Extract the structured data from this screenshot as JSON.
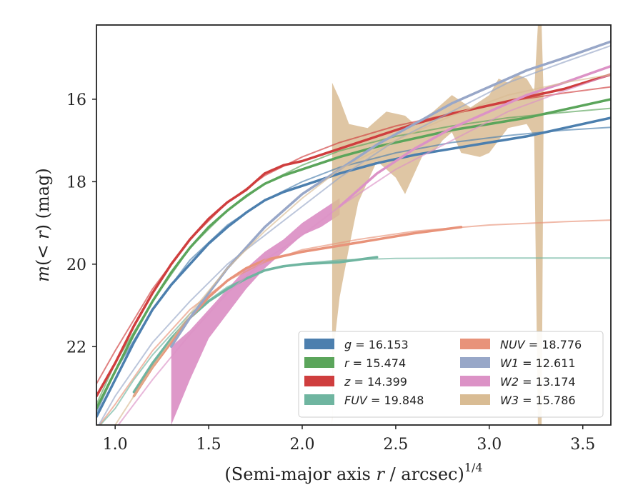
{
  "chart_data": {
    "type": "line",
    "xlabel": "(Semi-major axis r / arcsec)",
    "xlabel_var": "r",
    "xlabel_sup": "1/4",
    "ylabel": "m(< r) (mag)",
    "xlim": [
      0.9,
      3.65
    ],
    "ylim": [
      23.9,
      14.2
    ],
    "y_inverted": true,
    "xticks": [
      1.0,
      1.5,
      2.0,
      2.5,
      3.0,
      3.5
    ],
    "xtick_labels": [
      "1.0",
      "1.5",
      "2.0",
      "2.5",
      "3.0",
      "3.5"
    ],
    "yticks": [
      16,
      18,
      20,
      22
    ],
    "ytick_labels": [
      "16",
      "18",
      "20",
      "22"
    ],
    "grid": false,
    "legend_position": "lower-right",
    "series": [
      {
        "name": "g = 16.153",
        "color": "#4c7fae",
        "data": [
          [
            0.9,
            23.7
          ],
          [
            1.0,
            22.8
          ],
          [
            1.1,
            21.9
          ],
          [
            1.2,
            21.1
          ],
          [
            1.3,
            20.5
          ],
          [
            1.4,
            20.0
          ],
          [
            1.5,
            19.5
          ],
          [
            1.6,
            19.1
          ],
          [
            1.7,
            18.75
          ],
          [
            1.8,
            18.45
          ],
          [
            1.9,
            18.25
          ],
          [
            2.0,
            18.1
          ],
          [
            2.2,
            17.8
          ],
          [
            2.4,
            17.55
          ],
          [
            2.6,
            17.35
          ],
          [
            2.8,
            17.2
          ],
          [
            3.0,
            17.05
          ],
          [
            3.2,
            16.9
          ],
          [
            3.4,
            16.7
          ],
          [
            3.65,
            16.45
          ]
        ],
        "model": [
          [
            0.9,
            23.6
          ],
          [
            1.0,
            22.6
          ],
          [
            1.2,
            21.1
          ],
          [
            1.4,
            19.9
          ],
          [
            1.6,
            19.05
          ],
          [
            1.8,
            18.45
          ],
          [
            2.0,
            18.0
          ],
          [
            2.2,
            17.65
          ],
          [
            2.5,
            17.3
          ],
          [
            2.8,
            17.05
          ],
          [
            3.1,
            16.88
          ],
          [
            3.4,
            16.75
          ],
          [
            3.65,
            16.68
          ]
        ]
      },
      {
        "name": "r = 15.474",
        "color": "#5ba55b",
        "data": [
          [
            0.9,
            23.5
          ],
          [
            1.0,
            22.6
          ],
          [
            1.1,
            21.7
          ],
          [
            1.2,
            20.9
          ],
          [
            1.3,
            20.2
          ],
          [
            1.4,
            19.6
          ],
          [
            1.5,
            19.1
          ],
          [
            1.6,
            18.7
          ],
          [
            1.7,
            18.35
          ],
          [
            1.8,
            18.05
          ],
          [
            1.9,
            17.85
          ],
          [
            2.0,
            17.7
          ],
          [
            2.2,
            17.4
          ],
          [
            2.4,
            17.15
          ],
          [
            2.6,
            16.95
          ],
          [
            2.8,
            16.75
          ],
          [
            3.0,
            16.6
          ],
          [
            3.2,
            16.45
          ],
          [
            3.4,
            16.25
          ],
          [
            3.65,
            16.0
          ]
        ],
        "model": [
          [
            0.9,
            23.4
          ],
          [
            1.0,
            22.4
          ],
          [
            1.2,
            20.9
          ],
          [
            1.4,
            19.6
          ],
          [
            1.6,
            18.7
          ],
          [
            1.8,
            18.05
          ],
          [
            2.0,
            17.6
          ],
          [
            2.2,
            17.25
          ],
          [
            2.5,
            16.9
          ],
          [
            2.8,
            16.65
          ],
          [
            3.1,
            16.45
          ],
          [
            3.4,
            16.32
          ],
          [
            3.65,
            16.22
          ]
        ]
      },
      {
        "name": "z = 14.399",
        "color": "#cf3e3e",
        "data": [
          [
            0.9,
            23.2
          ],
          [
            1.0,
            22.4
          ],
          [
            1.1,
            21.5
          ],
          [
            1.2,
            20.7
          ],
          [
            1.3,
            20.0
          ],
          [
            1.4,
            19.4
          ],
          [
            1.5,
            18.9
          ],
          [
            1.6,
            18.5
          ],
          [
            1.7,
            18.2
          ],
          [
            1.8,
            17.8
          ],
          [
            1.9,
            17.6
          ],
          [
            2.0,
            17.5
          ],
          [
            2.2,
            17.2
          ],
          [
            2.4,
            16.9
          ],
          [
            2.6,
            16.6
          ],
          [
            2.8,
            16.35
          ],
          [
            3.0,
            16.15
          ],
          [
            3.2,
            15.95
          ],
          [
            3.4,
            15.75
          ],
          [
            3.65,
            15.4
          ]
        ],
        "model": [
          [
            0.9,
            22.9
          ],
          [
            1.0,
            22.1
          ],
          [
            1.2,
            20.6
          ],
          [
            1.4,
            19.4
          ],
          [
            1.6,
            18.5
          ],
          [
            1.8,
            17.85
          ],
          [
            2.0,
            17.4
          ],
          [
            2.2,
            17.05
          ],
          [
            2.5,
            16.65
          ],
          [
            2.8,
            16.35
          ],
          [
            3.1,
            16.05
          ],
          [
            3.4,
            15.85
          ],
          [
            3.65,
            15.7
          ]
        ]
      },
      {
        "name": "FUV = 19.848",
        "color": "#6fb5a0",
        "data": [
          [
            1.1,
            23.1
          ],
          [
            1.2,
            22.4
          ],
          [
            1.3,
            21.8
          ],
          [
            1.4,
            21.3
          ],
          [
            1.5,
            20.9
          ],
          [
            1.6,
            20.6
          ],
          [
            1.7,
            20.35
          ],
          [
            1.8,
            20.15
          ],
          [
            1.9,
            20.05
          ],
          [
            2.0,
            20.0
          ],
          [
            2.2,
            19.95
          ],
          [
            2.4,
            19.83
          ]
        ],
        "model": [
          [
            0.9,
            24.0
          ],
          [
            1.0,
            23.5
          ],
          [
            1.1,
            22.8
          ],
          [
            1.2,
            22.2
          ],
          [
            1.4,
            21.2
          ],
          [
            1.6,
            20.55
          ],
          [
            1.8,
            20.15
          ],
          [
            2.0,
            19.98
          ],
          [
            2.2,
            19.9
          ],
          [
            2.5,
            19.86
          ],
          [
            3.0,
            19.85
          ],
          [
            3.65,
            19.85
          ]
        ]
      },
      {
        "name": "NUV = 18.776",
        "color": "#e8937a",
        "data": [
          [
            1.1,
            23.2
          ],
          [
            1.2,
            22.5
          ],
          [
            1.3,
            21.9
          ],
          [
            1.4,
            21.3
          ],
          [
            1.5,
            20.8
          ],
          [
            1.6,
            20.4
          ],
          [
            1.7,
            20.1
          ],
          [
            1.8,
            19.9
          ],
          [
            2.0,
            19.7
          ],
          [
            2.2,
            19.55
          ],
          [
            2.4,
            19.4
          ],
          [
            2.6,
            19.25
          ],
          [
            2.85,
            19.1
          ]
        ],
        "model": [
          [
            0.9,
            24.0
          ],
          [
            1.0,
            23.4
          ],
          [
            1.2,
            22.1
          ],
          [
            1.4,
            21.1
          ],
          [
            1.6,
            20.4
          ],
          [
            1.8,
            19.95
          ],
          [
            2.0,
            19.65
          ],
          [
            2.3,
            19.4
          ],
          [
            2.6,
            19.2
          ],
          [
            3.0,
            19.05
          ],
          [
            3.4,
            18.97
          ],
          [
            3.65,
            18.93
          ]
        ]
      },
      {
        "name": "W1 = 12.611",
        "color": "#98a7c8",
        "data": [
          [
            1.3,
            22.0
          ],
          [
            1.4,
            21.3
          ],
          [
            1.5,
            20.7
          ],
          [
            1.6,
            20.1
          ],
          [
            1.7,
            19.6
          ],
          [
            1.8,
            19.1
          ],
          [
            1.9,
            18.7
          ],
          [
            2.0,
            18.3
          ],
          [
            2.1,
            18.0
          ],
          [
            2.2,
            17.7
          ],
          [
            2.4,
            17.1
          ],
          [
            2.6,
            16.6
          ],
          [
            2.8,
            16.1
          ],
          [
            3.0,
            15.7
          ],
          [
            3.2,
            15.3
          ],
          [
            3.4,
            15.0
          ],
          [
            3.65,
            14.6
          ]
        ],
        "model": [
          [
            0.9,
            24.0
          ],
          [
            1.0,
            23.2
          ],
          [
            1.2,
            21.9
          ],
          [
            1.4,
            20.9
          ],
          [
            1.6,
            20.0
          ],
          [
            1.8,
            19.3
          ],
          [
            2.0,
            18.6
          ],
          [
            2.2,
            17.9
          ],
          [
            2.5,
            17.0
          ],
          [
            2.8,
            16.3
          ],
          [
            3.1,
            15.6
          ],
          [
            3.4,
            15.1
          ],
          [
            3.65,
            14.7
          ]
        ]
      },
      {
        "name": "W2 = 13.174",
        "color": "#dc92c6",
        "data_lower": [
          [
            1.3,
            23.9
          ],
          [
            1.4,
            22.8
          ],
          [
            1.5,
            21.8
          ],
          [
            1.6,
            21.2
          ],
          [
            1.7,
            20.6
          ],
          [
            1.8,
            20.1
          ],
          [
            1.9,
            19.7
          ],
          [
            2.0,
            19.3
          ],
          [
            2.1,
            19.1
          ],
          [
            2.2,
            18.8
          ]
        ],
        "data_upper": [
          [
            1.3,
            22.0
          ],
          [
            1.4,
            21.6
          ],
          [
            1.5,
            21.1
          ],
          [
            1.6,
            20.6
          ],
          [
            1.7,
            20.1
          ],
          [
            1.8,
            19.7
          ],
          [
            1.9,
            19.4
          ],
          [
            2.0,
            19.0
          ],
          [
            2.1,
            18.7
          ],
          [
            2.2,
            18.4
          ]
        ],
        "data": [
          [
            2.2,
            18.6
          ],
          [
            2.4,
            17.8
          ],
          [
            2.6,
            17.2
          ],
          [
            2.8,
            16.7
          ],
          [
            3.0,
            16.3
          ],
          [
            3.2,
            15.9
          ],
          [
            3.4,
            15.6
          ],
          [
            3.65,
            15.2
          ]
        ],
        "model": [
          [
            1.0,
            24.0
          ],
          [
            1.2,
            22.8
          ],
          [
            1.4,
            21.7
          ],
          [
            1.6,
            20.7
          ],
          [
            1.8,
            19.9
          ],
          [
            2.0,
            19.3
          ],
          [
            2.2,
            18.6
          ],
          [
            2.5,
            17.7
          ],
          [
            2.8,
            17.0
          ],
          [
            3.1,
            16.3
          ],
          [
            3.4,
            15.8
          ],
          [
            3.65,
            15.4
          ]
        ]
      },
      {
        "name": "W3 = 15.786",
        "color": "#d9bc94",
        "band_upper": [
          [
            2.16,
            15.6
          ],
          [
            2.2,
            16.0
          ],
          [
            2.25,
            16.6
          ],
          [
            2.35,
            16.7
          ],
          [
            2.45,
            16.3
          ],
          [
            2.55,
            16.4
          ],
          [
            2.6,
            16.6
          ],
          [
            2.7,
            16.3
          ],
          [
            2.8,
            15.9
          ],
          [
            2.9,
            16.2
          ],
          [
            3.0,
            15.9
          ],
          [
            3.05,
            15.5
          ],
          [
            3.1,
            15.6
          ],
          [
            3.15,
            15.4
          ],
          [
            3.2,
            15.5
          ],
          [
            3.24,
            15.8
          ],
          [
            3.26,
            14.2
          ],
          [
            3.28,
            14.2
          ],
          [
            3.29,
            15.8
          ]
        ],
        "band_lower": [
          [
            2.16,
            23.9
          ],
          [
            2.17,
            22.0
          ],
          [
            2.2,
            20.8
          ],
          [
            2.25,
            19.6
          ],
          [
            2.3,
            18.5
          ],
          [
            2.4,
            17.5
          ],
          [
            2.5,
            17.9
          ],
          [
            2.55,
            18.3
          ],
          [
            2.6,
            17.8
          ],
          [
            2.65,
            17.3
          ],
          [
            2.7,
            17.3
          ],
          [
            2.75,
            17.0
          ],
          [
            2.8,
            16.8
          ],
          [
            2.85,
            17.3
          ],
          [
            2.95,
            17.4
          ],
          [
            3.0,
            17.3
          ],
          [
            3.1,
            16.7
          ],
          [
            3.2,
            16.6
          ],
          [
            3.24,
            16.9
          ],
          [
            3.26,
            23.9
          ],
          [
            3.28,
            23.9
          ],
          [
            3.29,
            16.8
          ]
        ],
        "model": [
          [
            1.0,
            23.9
          ],
          [
            1.2,
            22.5
          ],
          [
            1.4,
            21.2
          ],
          [
            1.6,
            20.1
          ],
          [
            1.8,
            19.2
          ],
          [
            2.0,
            18.4
          ],
          [
            2.2,
            17.7
          ],
          [
            2.5,
            17.0
          ],
          [
            2.8,
            16.4
          ],
          [
            3.1,
            15.9
          ],
          [
            3.4,
            15.6
          ],
          [
            3.65,
            15.4
          ]
        ]
      }
    ],
    "legend": [
      {
        "label": "g = 16.153",
        "color": "#4c7fae"
      },
      {
        "label": "NUV = 18.776",
        "color": "#e8937a"
      },
      {
        "label": "r = 15.474",
        "color": "#5ba55b"
      },
      {
        "label": "W1 = 12.611",
        "color": "#98a7c8"
      },
      {
        "label": "z = 14.399",
        "color": "#cf3e3e"
      },
      {
        "label": "W2 = 13.174",
        "color": "#dc92c6"
      },
      {
        "label": "FUV = 19.848",
        "color": "#6fb5a0"
      },
      {
        "label": "W3 = 15.786",
        "color": "#d9bc94"
      }
    ]
  }
}
